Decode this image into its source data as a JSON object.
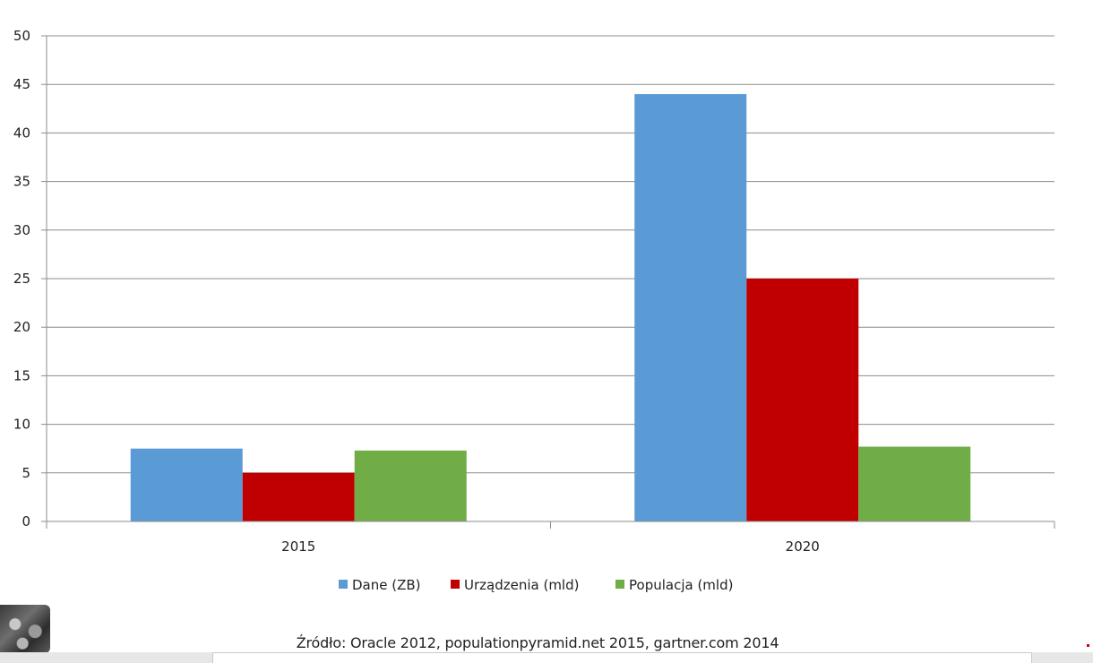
{
  "chart_data": {
    "type": "bar",
    "categories": [
      "2015",
      "2020"
    ],
    "series": [
      {
        "name": "Dane (ZB)",
        "values": [
          7.5,
          44
        ],
        "color": "#5b9bd5"
      },
      {
        "name": "Urządzenia (mld)",
        "values": [
          5,
          25
        ],
        "color": "#c00000"
      },
      {
        "name": "Populacja (mld)",
        "values": [
          7.3,
          7.7
        ],
        "color": "#70ad47"
      }
    ],
    "ylim": [
      0,
      50
    ],
    "yticks": [
      "0",
      "5",
      "10",
      "15",
      "20",
      "25",
      "30",
      "35",
      "40",
      "45",
      "50"
    ],
    "grid": true,
    "legend_position": "bottom"
  },
  "source_note": "Źródło: Oracle 2012, populationpyramid.net 2015, gartner.com 2014"
}
